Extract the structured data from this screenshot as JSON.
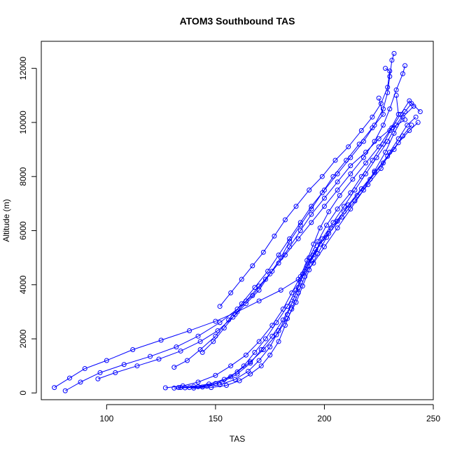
{
  "chart_data": {
    "type": "scatter",
    "title": "ATOM3 Southbound TAS",
    "xlabel": "TAS",
    "ylabel": "Altitude (m)",
    "xlim": [
      70,
      250
    ],
    "ylim": [
      -250,
      13000
    ],
    "x_ticks": [
      100,
      150,
      200,
      250
    ],
    "y_ticks": [
      0,
      2000,
      4000,
      6000,
      8000,
      10000,
      12000
    ],
    "grid": false,
    "color": "#0000ff",
    "marker": "open-circle",
    "connected": true,
    "series": [
      {
        "points": [
          [
            131,
            180
          ],
          [
            138,
            200
          ],
          [
            146,
            250
          ],
          [
            153,
            400
          ],
          [
            160,
            700
          ],
          [
            166,
            1100
          ],
          [
            171,
            1600
          ],
          [
            176,
            2100
          ],
          [
            181,
            2700
          ],
          [
            185,
            3300
          ],
          [
            188,
            3900
          ],
          [
            191,
            4500
          ],
          [
            195,
            5100
          ],
          [
            199,
            5700
          ],
          [
            204,
            6300
          ],
          [
            209,
            6900
          ],
          [
            214,
            7500
          ],
          [
            219,
            8100
          ],
          [
            224,
            8700
          ],
          [
            229,
            9300
          ],
          [
            233,
            9900
          ],
          [
            237,
            10400
          ],
          [
            240,
            10700
          ]
        ]
      },
      {
        "points": [
          [
            134,
            200
          ],
          [
            142,
            230
          ],
          [
            150,
            350
          ],
          [
            157,
            600
          ],
          [
            163,
            1000
          ],
          [
            168,
            1500
          ],
          [
            173,
            2000
          ],
          [
            178,
            2600
          ],
          [
            183,
            3200
          ],
          [
            187,
            3800
          ],
          [
            190,
            4400
          ],
          [
            193,
            5000
          ],
          [
            197,
            5600
          ],
          [
            201,
            6200
          ],
          [
            206,
            6800
          ],
          [
            212,
            7400
          ],
          [
            217,
            8000
          ],
          [
            222,
            8600
          ],
          [
            227,
            9200
          ],
          [
            231,
            9800
          ],
          [
            235,
            10300
          ],
          [
            239,
            10800
          ],
          [
            244,
            10400
          ]
        ]
      },
      {
        "points": [
          [
            76,
            200
          ],
          [
            83,
            550
          ],
          [
            90,
            900
          ],
          [
            100,
            1200
          ],
          [
            112,
            1600
          ],
          [
            125,
            1950
          ],
          [
            138,
            2300
          ],
          [
            150,
            2650
          ],
          [
            160,
            3000
          ],
          [
            170,
            3400
          ],
          [
            180,
            3800
          ],
          [
            188,
            4200
          ],
          [
            195,
            4800
          ],
          [
            200,
            5400
          ],
          [
            206,
            6100
          ],
          [
            212,
            6800
          ],
          [
            218,
            7500
          ],
          [
            223,
            8200
          ],
          [
            228,
            8900
          ],
          [
            232,
            9600
          ],
          [
            236,
            10200
          ],
          [
            241,
            10600
          ]
        ]
      },
      {
        "points": [
          [
            81,
            80
          ],
          [
            88,
            400
          ],
          [
            97,
            750
          ],
          [
            108,
            1050
          ],
          [
            120,
            1350
          ],
          [
            132,
            1700
          ],
          [
            142,
            2100
          ],
          [
            152,
            2600
          ],
          [
            160,
            3100
          ],
          [
            167,
            3600
          ],
          [
            173,
            4200
          ],
          [
            179,
            4800
          ],
          [
            184,
            5400
          ],
          [
            189,
            6000
          ],
          [
            194,
            6600
          ],
          [
            200,
            7200
          ],
          [
            206,
            7800
          ],
          [
            212,
            8400
          ],
          [
            219,
            8900
          ],
          [
            225,
            9400
          ],
          [
            231,
            9800
          ],
          [
            237,
            10100
          ]
        ]
      },
      {
        "points": [
          [
            136,
            190
          ],
          [
            144,
            220
          ],
          [
            152,
            300
          ],
          [
            159,
            500
          ],
          [
            165,
            800
          ],
          [
            170,
            1200
          ],
          [
            175,
            1700
          ],
          [
            179,
            2300
          ],
          [
            183,
            2900
          ],
          [
            186,
            3500
          ],
          [
            189,
            4100
          ],
          [
            192,
            4700
          ],
          [
            196,
            5300
          ],
          [
            202,
            5900
          ],
          [
            208,
            6500
          ],
          [
            214,
            7100
          ],
          [
            220,
            7700
          ],
          [
            226,
            8300
          ],
          [
            230,
            8900
          ],
          [
            234,
            9400
          ],
          [
            238,
            9900
          ],
          [
            242,
            10200
          ]
        ]
      },
      {
        "points": [
          [
            127,
            190
          ],
          [
            135,
            260
          ],
          [
            142,
            400
          ],
          [
            150,
            650
          ],
          [
            157,
            1000
          ],
          [
            164,
            1400
          ],
          [
            170,
            1900
          ],
          [
            176,
            2500
          ],
          [
            181,
            3100
          ],
          [
            185,
            3700
          ],
          [
            189,
            4300
          ],
          [
            192,
            4900
          ],
          [
            195,
            5500
          ],
          [
            198,
            6100
          ],
          [
            202,
            6700
          ],
          [
            207,
            7300
          ],
          [
            213,
            7900
          ],
          [
            219,
            8500
          ],
          [
            225,
            9100
          ],
          [
            230,
            9700
          ],
          [
            234,
            10300
          ],
          [
            233,
            11000
          ]
        ]
      },
      {
        "points": [
          [
            131,
            950
          ],
          [
            137,
            1200
          ],
          [
            143,
            1600
          ],
          [
            150,
            2100
          ],
          [
            156,
            2700
          ],
          [
            162,
            3300
          ],
          [
            168,
            3900
          ],
          [
            174,
            4500
          ],
          [
            179,
            5100
          ],
          [
            184,
            5700
          ],
          [
            189,
            6300
          ],
          [
            194,
            6900
          ],
          [
            200,
            7500
          ],
          [
            206,
            8100
          ],
          [
            212,
            8700
          ],
          [
            218,
            9300
          ],
          [
            223,
            9900
          ],
          [
            227,
            10500
          ],
          [
            229,
            11100
          ],
          [
            230,
            11700
          ],
          [
            231,
            12300
          ],
          [
            232,
            12550
          ]
        ]
      },
      {
        "points": [
          [
            140,
            180
          ],
          [
            148,
            200
          ],
          [
            155,
            280
          ],
          [
            161,
            450
          ],
          [
            166,
            700
          ],
          [
            171,
            1000
          ],
          [
            175,
            1400
          ],
          [
            179,
            1900
          ],
          [
            182,
            2500
          ],
          [
            185,
            3100
          ],
          [
            188,
            3700
          ],
          [
            191,
            4300
          ],
          [
            194,
            4900
          ],
          [
            198,
            5500
          ],
          [
            203,
            6100
          ],
          [
            209,
            6700
          ],
          [
            215,
            7300
          ],
          [
            221,
            7900
          ],
          [
            227,
            8500
          ],
          [
            232,
            9000
          ],
          [
            236,
            9500
          ],
          [
            240,
            9900
          ]
        ]
      },
      {
        "points": [
          [
            96,
            520
          ],
          [
            104,
            750
          ],
          [
            114,
            1000
          ],
          [
            124,
            1250
          ],
          [
            134,
            1550
          ],
          [
            143,
            1900
          ],
          [
            151,
            2300
          ],
          [
            158,
            2800
          ],
          [
            164,
            3300
          ],
          [
            170,
            3800
          ],
          [
            175,
            4400
          ],
          [
            180,
            5000
          ],
          [
            184,
            5600
          ],
          [
            189,
            6200
          ],
          [
            194,
            6800
          ],
          [
            199,
            7400
          ],
          [
            204,
            8000
          ],
          [
            210,
            8600
          ],
          [
            216,
            9200
          ],
          [
            222,
            9800
          ],
          [
            227,
            10300
          ],
          [
            225,
            10900
          ]
        ]
      },
      {
        "points": [
          [
            133,
            200
          ],
          [
            140,
            240
          ],
          [
            147,
            330
          ],
          [
            154,
            500
          ],
          [
            160,
            780
          ],
          [
            166,
            1150
          ],
          [
            172,
            1600
          ],
          [
            178,
            2150
          ],
          [
            183,
            2750
          ],
          [
            187,
            3350
          ],
          [
            190,
            3950
          ],
          [
            193,
            4550
          ],
          [
            197,
            5150
          ],
          [
            201,
            5750
          ],
          [
            206,
            6350
          ],
          [
            211,
            6950
          ],
          [
            217,
            7550
          ],
          [
            223,
            8150
          ],
          [
            229,
            8750
          ],
          [
            234,
            9250
          ],
          [
            239,
            9700
          ],
          [
            243,
            10000
          ]
        ]
      },
      {
        "points": [
          [
            144,
            1500
          ],
          [
            149,
            1900
          ],
          [
            154,
            2400
          ],
          [
            159,
            2900
          ],
          [
            164,
            3400
          ],
          [
            170,
            3950
          ],
          [
            176,
            4500
          ],
          [
            182,
            5100
          ],
          [
            188,
            5700
          ],
          [
            194,
            6300
          ],
          [
            200,
            6900
          ],
          [
            206,
            7500
          ],
          [
            212,
            8100
          ],
          [
            218,
            8700
          ],
          [
            223,
            9300
          ],
          [
            227,
            9900
          ],
          [
            230,
            10500
          ],
          [
            233,
            11200
          ],
          [
            236,
            11800
          ],
          [
            237,
            12100
          ]
        ]
      },
      {
        "points": [
          [
            152,
            3200
          ],
          [
            157,
            3700
          ],
          [
            162,
            4200
          ],
          [
            167,
            4700
          ],
          [
            172,
            5200
          ],
          [
            177,
            5800
          ],
          [
            182,
            6400
          ],
          [
            187,
            6900
          ],
          [
            193,
            7500
          ],
          [
            199,
            8000
          ],
          [
            205,
            8600
          ],
          [
            211,
            9100
          ],
          [
            217,
            9700
          ],
          [
            222,
            10200
          ],
          [
            226,
            10700
          ],
          [
            229,
            11300
          ],
          [
            230,
            11900
          ],
          [
            228,
            12000
          ]
        ]
      }
    ]
  }
}
